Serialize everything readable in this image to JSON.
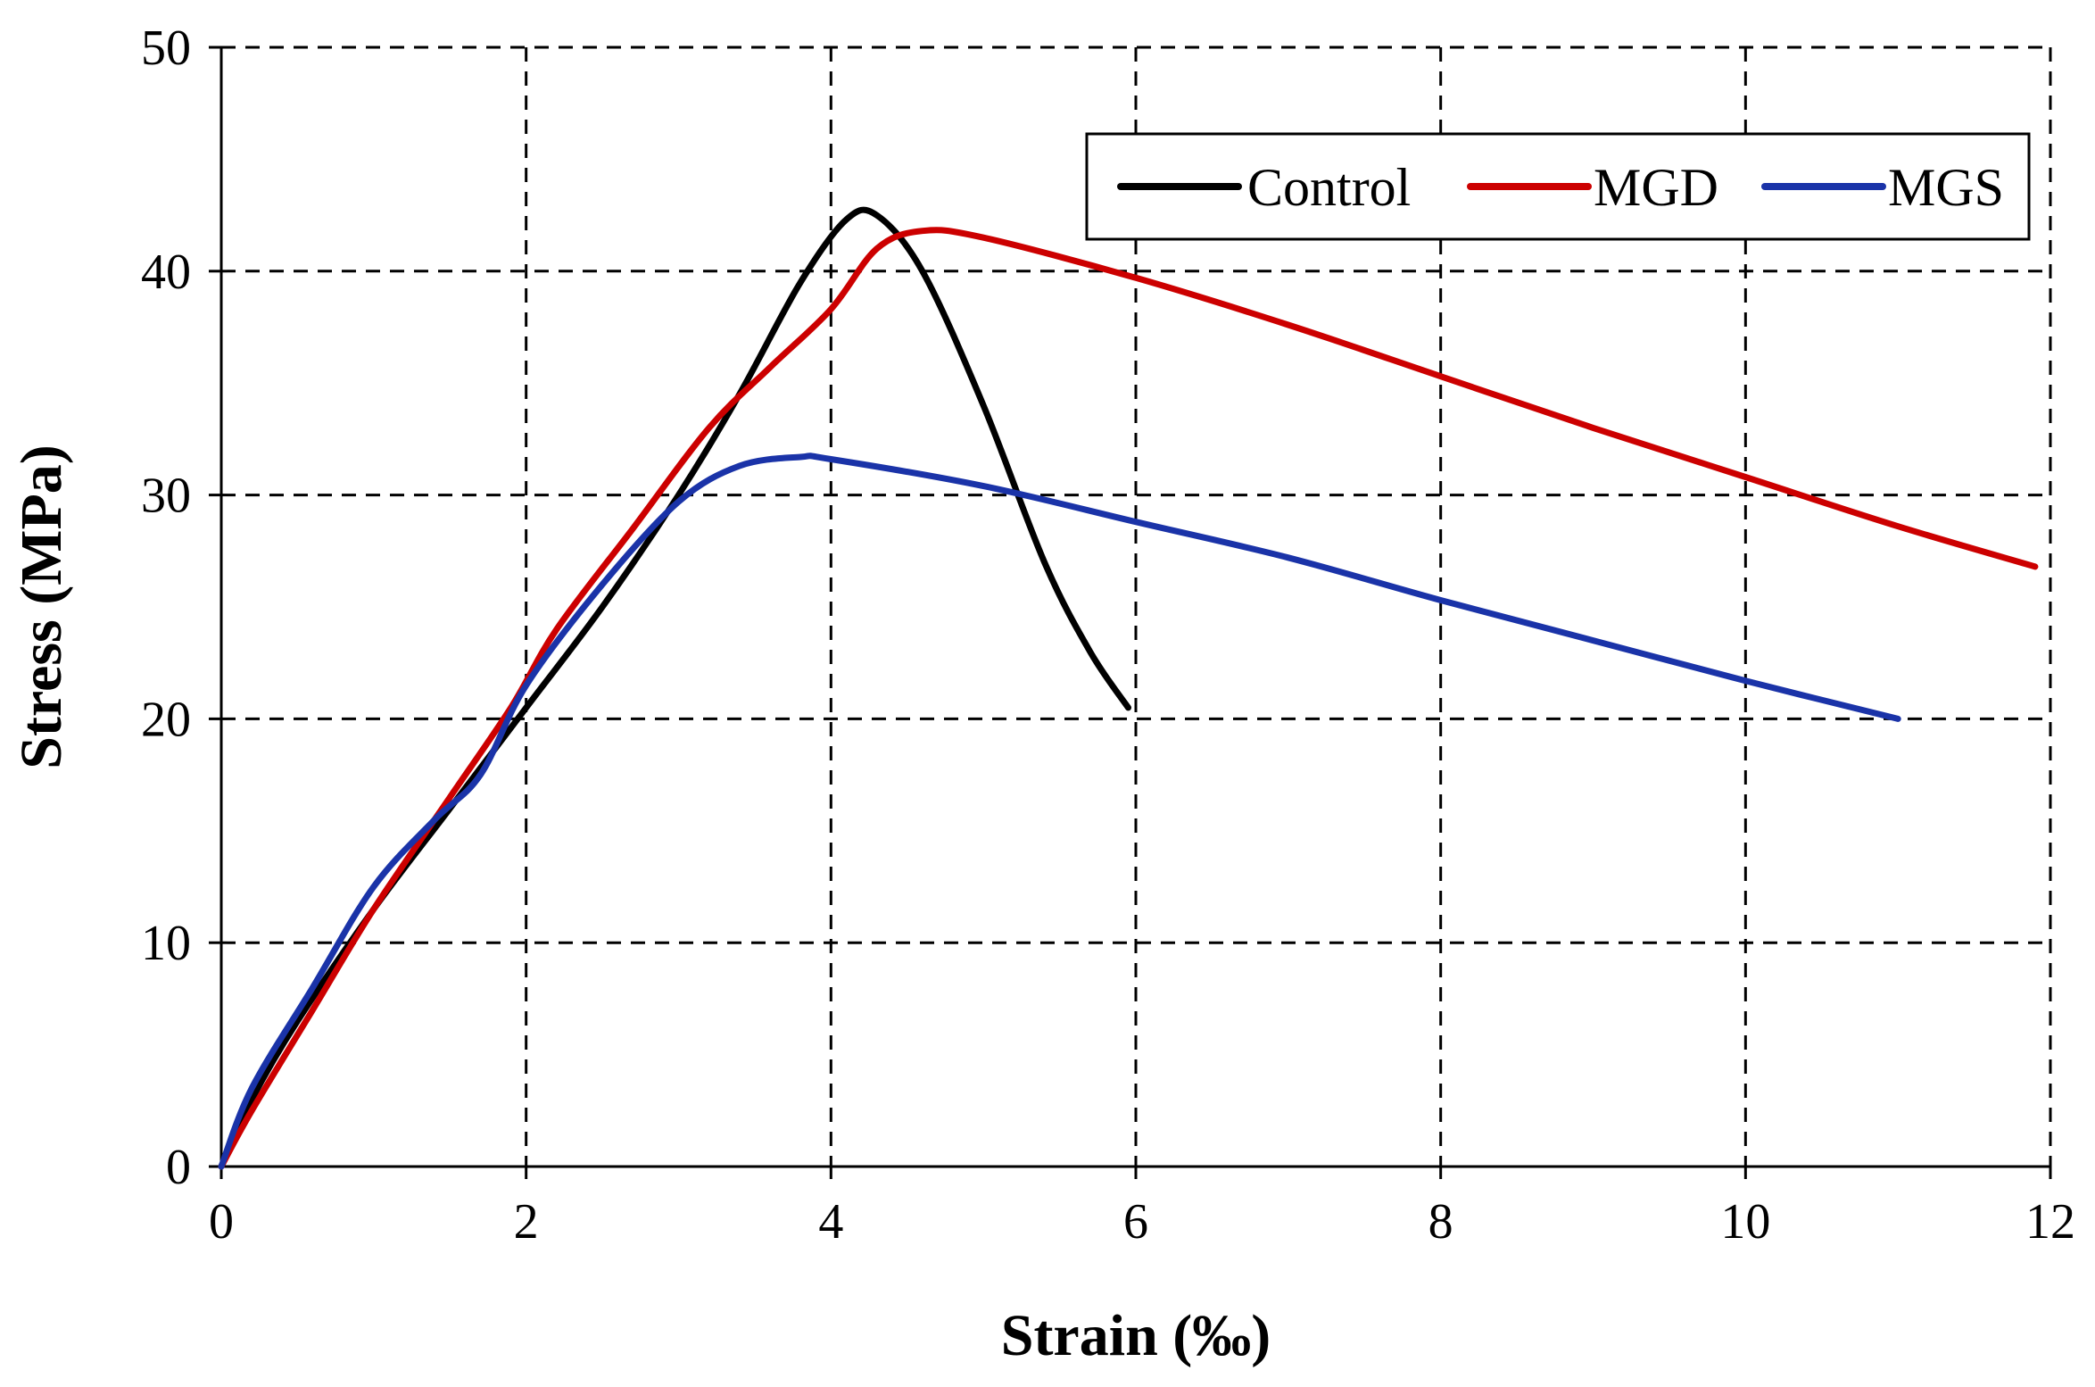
{
  "chart_data": {
    "type": "line",
    "title": "",
    "xlabel": "Strain (‰)",
    "ylabel": "Stress (MPa)",
    "xlim": [
      0,
      12
    ],
    "ylim": [
      0,
      50
    ],
    "xticks": [
      0,
      2,
      4,
      6,
      8,
      10,
      12
    ],
    "yticks": [
      0,
      10,
      20,
      30,
      40,
      50
    ],
    "x_tick_labels": [
      "0",
      "2",
      "4",
      "6",
      "8",
      "10",
      "12"
    ],
    "y_tick_labels": [
      "0",
      "10",
      "20",
      "30",
      "40",
      "50"
    ],
    "grid": true,
    "legend_position": "top-right",
    "series": [
      {
        "name": "Control",
        "color": "#000000",
        "x": [
          0,
          0.2,
          0.5,
          1.0,
          1.5,
          2.0,
          2.5,
          3.0,
          3.4,
          3.8,
          4.1,
          4.3,
          4.6,
          5.0,
          5.4,
          5.7,
          5.95
        ],
        "y": [
          0,
          3,
          6.5,
          11.5,
          16,
          20.5,
          25,
          30,
          34.5,
          39.5,
          42.3,
          42.5,
          40,
          34,
          27,
          23,
          20.5
        ]
      },
      {
        "name": "MGD",
        "color": "#cc0000",
        "x": [
          0,
          0.2,
          0.6,
          1.0,
          1.5,
          1.9,
          2.2,
          2.7,
          3.2,
          3.6,
          4.0,
          4.3,
          4.6,
          5.0,
          6.0,
          7.0,
          8.0,
          9.0,
          10.0,
          11.0,
          11.9
        ],
        "y": [
          0,
          2.5,
          7,
          11.5,
          16.5,
          20.5,
          24,
          28.5,
          33,
          35.7,
          38.3,
          41,
          41.8,
          41.5,
          39.7,
          37.6,
          35.3,
          33,
          30.8,
          28.6,
          26.8
        ]
      },
      {
        "name": "MGS",
        "color": "#1a33a8",
        "x": [
          0,
          0.2,
          0.6,
          1.0,
          1.4,
          1.7,
          2.0,
          2.5,
          3.0,
          3.4,
          3.8,
          4.0,
          5.0,
          6.0,
          7.0,
          8.0,
          9.0,
          10.0,
          11.0
        ],
        "y": [
          0,
          3.5,
          8,
          12.5,
          15.5,
          17.5,
          21.5,
          26,
          29.7,
          31.3,
          31.7,
          31.6,
          30.4,
          28.8,
          27.2,
          25.3,
          23.5,
          21.7,
          20
        ]
      }
    ]
  }
}
